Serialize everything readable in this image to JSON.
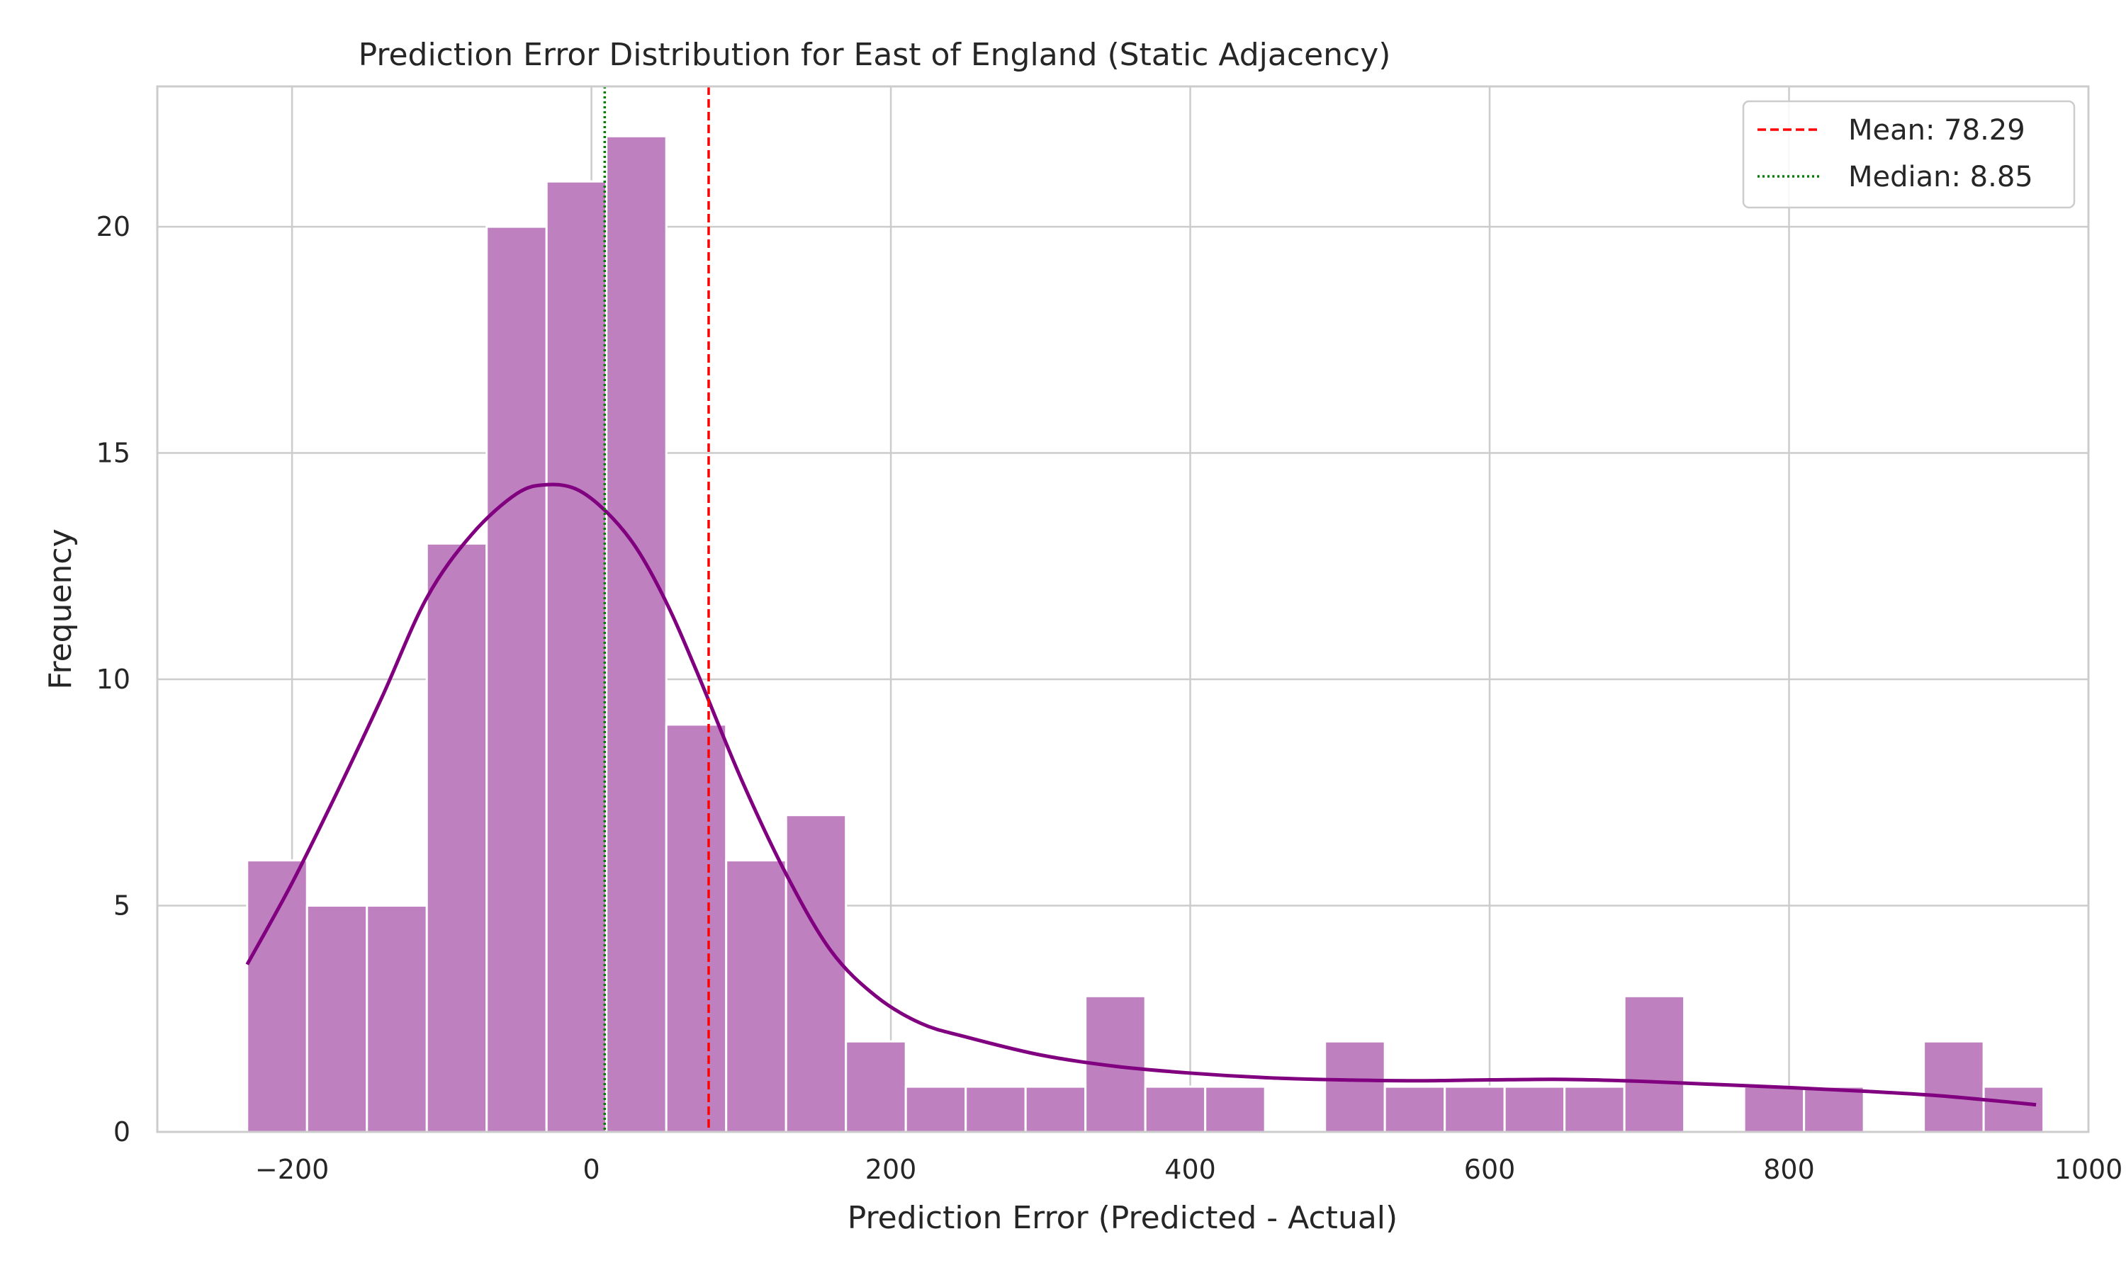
{
  "chart_data": {
    "type": "bar",
    "title": "Prediction Error Distribution for East of England (Static Adjacency)",
    "xlabel": "Prediction Error (Predicted - Actual)",
    "ylabel": "Frequency",
    "xlim": [
      -290,
      1000
    ],
    "ylim": [
      0,
      23.1
    ],
    "xticks": [
      -200,
      0,
      200,
      400,
      600,
      800,
      1000
    ],
    "xtick_labels": [
      "−200",
      "0",
      "200",
      "400",
      "600",
      "800",
      "1000"
    ],
    "yticks": [
      0,
      5,
      10,
      15,
      20
    ],
    "ytick_labels": [
      "0",
      "5",
      "10",
      "15",
      "20"
    ],
    "grid": true,
    "bins": {
      "start": -230,
      "width": 40,
      "counts": [
        6,
        5,
        5,
        13,
        20,
        21,
        22,
        9,
        6,
        7,
        2,
        1,
        1,
        1,
        3,
        1,
        1,
        0,
        2,
        1,
        1,
        1,
        1,
        3,
        0,
        1,
        1,
        0,
        2,
        1
      ]
    },
    "bar_color": "#bf80bf",
    "kde": {
      "color": "#800080",
      "x": [
        -230,
        -200,
        -170,
        -140,
        -110,
        -80,
        -50,
        -30,
        -10,
        10,
        30,
        50,
        70,
        100,
        130,
        160,
        190,
        220,
        250,
        300,
        350,
        400,
        450,
        500,
        550,
        600,
        650,
        700,
        750,
        800,
        850,
        900,
        950,
        965
      ],
      "y": [
        3.7,
        5.5,
        7.5,
        9.6,
        11.8,
        13.2,
        14.1,
        14.3,
        14.2,
        13.7,
        12.9,
        11.7,
        10.2,
        7.8,
        5.7,
        4.0,
        3.0,
        2.4,
        2.1,
        1.7,
        1.45,
        1.3,
        1.2,
        1.15,
        1.13,
        1.15,
        1.16,
        1.12,
        1.05,
        0.98,
        0.9,
        0.8,
        0.65,
        0.6
      ]
    },
    "mean_line": {
      "x": 78.29,
      "color": "#ff0000",
      "style": "dashed",
      "label": "Mean: 78.29"
    },
    "median_line": {
      "x": 8.85,
      "color": "#008000",
      "style": "dotted",
      "label": "Median: 8.85"
    },
    "legend_placement": "top-right"
  }
}
